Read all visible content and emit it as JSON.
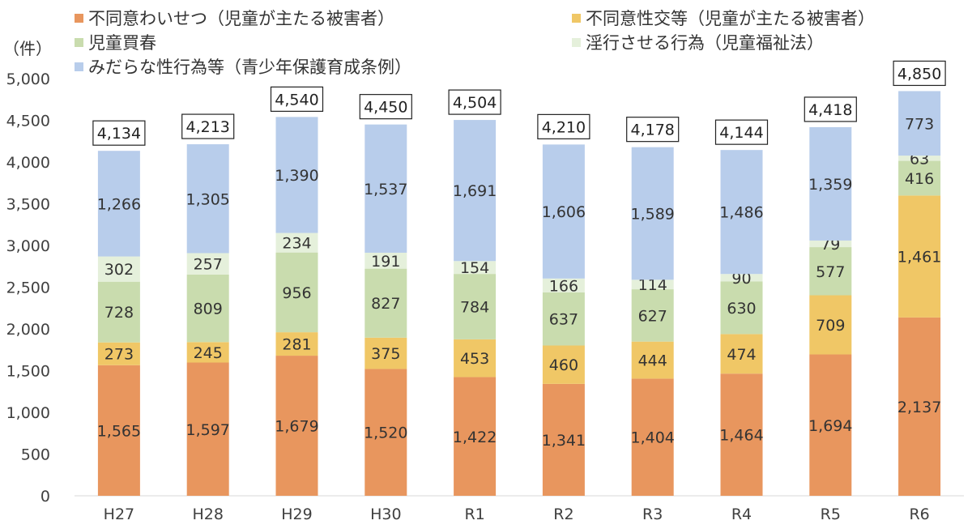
{
  "chart_data": {
    "type": "bar",
    "stacked": true,
    "unit": "（件）",
    "categories": [
      "H27",
      "H28",
      "H29",
      "H30",
      "R1",
      "R2",
      "R3",
      "R4",
      "R5",
      "R6"
    ],
    "ylim": [
      0,
      5000
    ],
    "yticks": [
      0,
      500,
      1000,
      1500,
      2000,
      2500,
      3000,
      3500,
      4000,
      4500,
      5000
    ],
    "grid": false,
    "series": [
      {
        "name": "不同意わいせつ（児童が主たる被害者）",
        "color": "#E8965E",
        "values": [
          1565,
          1597,
          1679,
          1520,
          1422,
          1341,
          1404,
          1464,
          1694,
          2137
        ]
      },
      {
        "name": "不同意性交等（児童が主たる被害者）",
        "color": "#F0C766",
        "values": [
          273,
          245,
          281,
          375,
          453,
          460,
          444,
          474,
          709,
          1461
        ]
      },
      {
        "name": "児童買春",
        "color": "#C9DCAE",
        "values": [
          728,
          809,
          956,
          827,
          784,
          637,
          627,
          630,
          577,
          416
        ]
      },
      {
        "name": "淫行させる行為（児童福祉法）",
        "color": "#E5F0DB",
        "values": [
          302,
          257,
          234,
          191,
          154,
          166,
          114,
          90,
          79,
          63
        ]
      },
      {
        "name": "みだらな性行為等（青少年保護育成条例）",
        "color": "#B8CDEB",
        "values": [
          1266,
          1305,
          1390,
          1537,
          1691,
          1606,
          1589,
          1486,
          1359,
          773
        ]
      }
    ],
    "totals": [
      4134,
      4213,
      4540,
      4450,
      4504,
      4210,
      4178,
      4144,
      4418,
      4850
    ]
  }
}
